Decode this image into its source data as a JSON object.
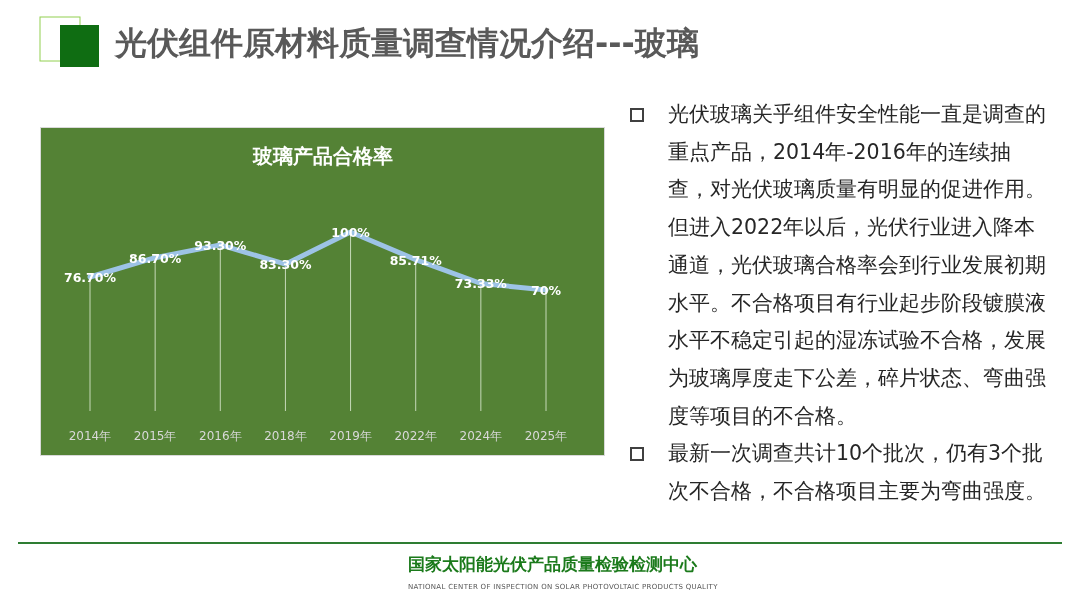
{
  "chart_data": {
    "type": "line",
    "title": "玻璃产品合格率",
    "categories": [
      "2014年",
      "2015年",
      "2016年",
      "2018年",
      "2019年",
      "2022年",
      "2024年",
      "2025年"
    ],
    "series": [
      {
        "color": "#9dc3e6",
        "values": [
          76.7,
          86.7,
          93.3,
          83.3,
          100,
          85.71,
          73.33,
          70
        ],
        "value_labels": [
          "76.70%",
          "86.70%",
          "93.30%",
          "83.30%",
          "100%",
          "85.71%",
          "73.33%",
          "70%"
        ]
      }
    ],
    "grid": "x",
    "line_style": "solid",
    "annotations": [
      "光伏组件原材料质量调查情况介绍---玻璃",
      "光伏玻璃关乎组件安全性能一直是调查的重点产品，2014年-2016年的连续抽查，对光伏玻璃质量有明显的促进作用。但进入2022年以后，光伏行业进入降本通道，光伏玻璃合格率会到行业发展初期水平。不合格项目有行业起步阶段镀膜液水平不稳定引起的湿冻试验不合格，发展为玻璃厚度走下公差，碎片状态、弯曲强度等项目的不合格。",
      "最新一次调查共计10个批次，仍有3个批次不合格，不合格项目主要为弯曲强度。",
      "国家太阳能光伏产品质量检验检测中心",
      "NATIONAL CENTER OF INSPECTION ON SOLAR PHOTOVOLTAIC PRODUCTS QUALITY"
    ]
  }
}
